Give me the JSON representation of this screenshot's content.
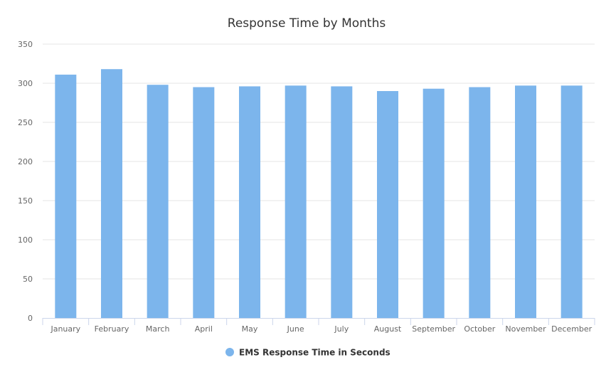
{
  "chart_data": {
    "type": "bar",
    "title": "Response Time by Months",
    "categories": [
      "January",
      "February",
      "March",
      "April",
      "May",
      "June",
      "July",
      "August",
      "September",
      "October",
      "November",
      "December"
    ],
    "series": [
      {
        "name": "EMS Response Time in Seconds",
        "color": "#7cb5ec",
        "values": [
          311,
          318,
          298,
          295,
          296,
          297,
          296,
          290,
          293,
          295,
          297,
          297
        ]
      }
    ],
    "ylim": [
      0,
      350
    ],
    "yticks": [
      0,
      50,
      100,
      150,
      200,
      250,
      300,
      350
    ],
    "grid": true,
    "legend": "bottom-center"
  }
}
